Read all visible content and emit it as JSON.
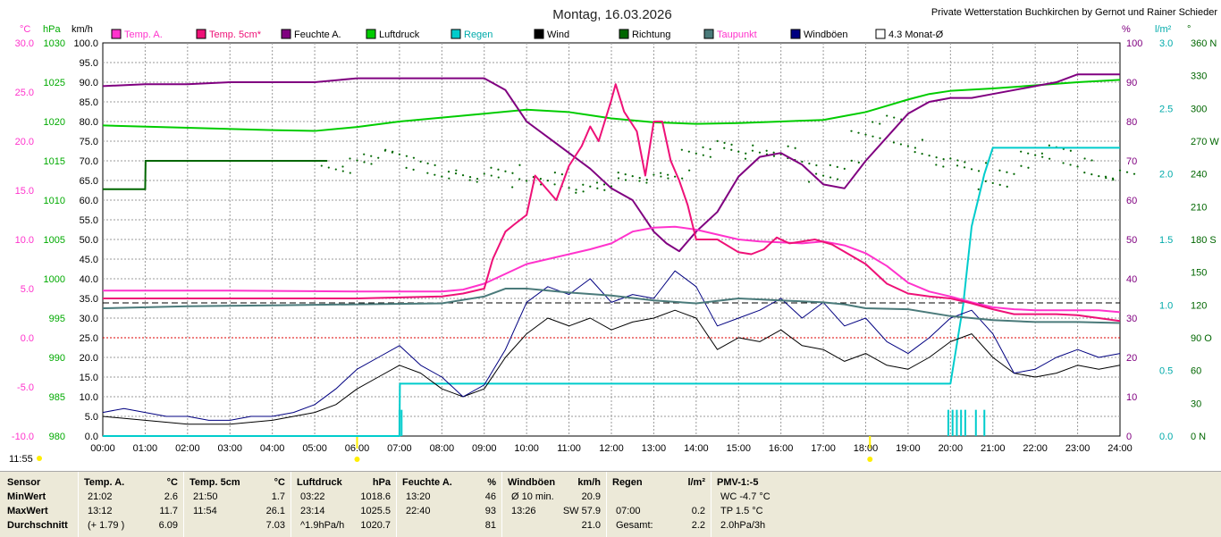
{
  "header": {
    "date_title": "Montag, 16.03.2026",
    "station": "Private Wetterstation Buchkirchen by Gernot und Rainer Schieder",
    "current_time": "11:55"
  },
  "units": {
    "left": [
      "°C",
      "hPa",
      "km/h"
    ],
    "right": [
      "%",
      "l/m²",
      "°"
    ]
  },
  "colors": {
    "temp_a": "#ff33cc",
    "temp_5cm": "#ee1177",
    "feuchte": "#800080",
    "luftdruck": "#00cc00",
    "regen": "#00cccc",
    "wind": "#000000",
    "richtung": "#006600",
    "taupunkt": "#4a7a7a",
    "windboeen": "#000080",
    "monat": "#000000"
  },
  "legend": [
    {
      "label": "Temp. A.",
      "color": "#ff33cc",
      "text_color": "#ff33cc"
    },
    {
      "label": "Temp. 5cm*",
      "color": "#ee1177",
      "text_color": "#ee1177"
    },
    {
      "label": "Feuchte A.",
      "color": "#800080",
      "text_color": "#000000"
    },
    {
      "label": "Luftdruck",
      "color": "#00cc00",
      "text_color": "#000000"
    },
    {
      "label": "Regen",
      "color": "#00cccc",
      "text_color": "#00aaaa"
    },
    {
      "label": "Wind",
      "color": "#000000",
      "text_color": "#000000"
    },
    {
      "label": "Richtung",
      "color": "#006600",
      "text_color": "#000000"
    },
    {
      "label": "Taupunkt",
      "color": "#4a7a7a",
      "text_color": "#ff33cc"
    },
    {
      "label": "Windböen",
      "color": "#000080",
      "text_color": "#000000"
    },
    {
      "label": "4.3 Monat-Ø",
      "color": "#ffffff",
      "text_color": "#000000"
    }
  ],
  "chart_data": {
    "type": "line",
    "x_ticks": [
      "00:00",
      "01:00",
      "02:00",
      "03:00",
      "04:00",
      "05:00",
      "06:00",
      "07:00",
      "08:00",
      "09:00",
      "10:00",
      "11:00",
      "12:00",
      "13:00",
      "14:00",
      "15:00",
      "16:00",
      "17:00",
      "18:00",
      "19:00",
      "20:00",
      "21:00",
      "22:00",
      "23:00",
      "24:00"
    ],
    "axes": {
      "temp": {
        "min": -10,
        "max": 30,
        "ticks": [
          "30.0",
          "25.0",
          "20.0",
          "15.0",
          "10.0",
          "5.0",
          "0.0",
          "-5.0",
          "-10.0"
        ]
      },
      "pressure": {
        "min": 980,
        "max": 1030,
        "ticks": [
          "1030",
          "1025",
          "1020",
          "1015",
          "1010",
          "1005",
          "1000",
          "995",
          "990",
          "985",
          "980"
        ]
      },
      "wind": {
        "min": 0,
        "max": 100,
        "ticks": [
          "100.0",
          "95.0",
          "90.0",
          "85.0",
          "80.0",
          "75.0",
          "70.0",
          "65.0",
          "60.0",
          "55.0",
          "50.0",
          "45.0",
          "40.0",
          "35.0",
          "30.0",
          "25.0",
          "20.0",
          "15.0",
          "10.0",
          "5.0",
          "0.0"
        ]
      },
      "humidity": {
        "min": 0,
        "max": 100,
        "ticks": [
          "100",
          "90",
          "80",
          "70",
          "60",
          "50",
          "40",
          "30",
          "20",
          "10",
          "0"
        ]
      },
      "rain": {
        "min": 0,
        "max": 3,
        "ticks": [
          "3.0",
          "2.5",
          "2.0",
          "1.5",
          "1.0",
          "0.5",
          "0.0"
        ]
      },
      "direction": {
        "min": 0,
        "max": 360,
        "ticks": [
          "360 N",
          "330",
          "300",
          "270 W",
          "240",
          "210",
          "180 S",
          "150",
          "120",
          "90 O",
          "60",
          "30",
          "0 N"
        ]
      }
    },
    "month_avg_temp": 3.55,
    "series": [
      {
        "name": "Temp. A.",
        "axis": "temp",
        "x": [
          0,
          3,
          6,
          8,
          8.5,
          9,
          9.5,
          10,
          10.5,
          11,
          11.5,
          12,
          12.5,
          13,
          13.5,
          14,
          14.5,
          15,
          15.5,
          16,
          16.5,
          17,
          17.5,
          18,
          18.5,
          19,
          19.5,
          20,
          20.5,
          21,
          21.5,
          22,
          22.5,
          23,
          23.5,
          24
        ],
        "y": [
          4.8,
          4.8,
          4.7,
          4.7,
          4.9,
          5.5,
          6.5,
          7.5,
          8,
          8.5,
          9,
          9.6,
          10.8,
          11.2,
          11.3,
          11,
          10.5,
          10,
          9.8,
          9.7,
          9.6,
          9.8,
          9.4,
          8.6,
          7.3,
          5.6,
          4.7,
          4.2,
          3.6,
          3.1,
          2.9,
          2.8,
          2.8,
          2.8,
          2.8,
          2.6
        ]
      },
      {
        "name": "Temp. 5cm*",
        "axis": "temp",
        "x": [
          0,
          3,
          6,
          7,
          8,
          8.5,
          9,
          9.2,
          9.5,
          9.7,
          10,
          10.2,
          10.5,
          10.7,
          11,
          11.3,
          11.5,
          11.7,
          12,
          12.1,
          12.3,
          12.6,
          12.8,
          13,
          13.2,
          13.4,
          13.6,
          13.8,
          14,
          14.5,
          15,
          15.3,
          15.6,
          15.9,
          16.2,
          16.5,
          16.8,
          17.2,
          17.6,
          18,
          18.5,
          19,
          19.5,
          20,
          20.5,
          21,
          21.5,
          22,
          22.5,
          23,
          23.5,
          24
        ],
        "y": [
          4.0,
          4.0,
          4.0,
          4.1,
          4.2,
          4.5,
          5.0,
          8.0,
          10.8,
          11.5,
          12.5,
          16.5,
          15.0,
          14.0,
          17.5,
          19.5,
          21.5,
          20.0,
          24.2,
          25.8,
          23.0,
          21.0,
          16.5,
          22.0,
          22.0,
          18.0,
          16.0,
          13.5,
          10.0,
          10.0,
          8.7,
          8.5,
          9.0,
          10.2,
          9.6,
          9.8,
          10.0,
          9.5,
          8.5,
          7.5,
          5.5,
          4.5,
          4.2,
          4.0,
          3.5,
          2.9,
          2.4,
          2.4,
          2.4,
          2.3,
          2.0,
          1.7
        ]
      },
      {
        "name": "Feuchte A.",
        "axis": "humidity",
        "x": [
          0,
          1,
          2,
          3,
          4,
          5,
          6,
          7,
          8,
          9,
          9.5,
          10,
          10.5,
          11,
          11.5,
          12,
          12.5,
          13,
          13.3,
          13.6,
          14,
          14.5,
          15,
          15.5,
          16,
          16.5,
          17,
          17.5,
          18,
          18.5,
          19,
          19.5,
          20,
          20.5,
          21,
          21.5,
          22,
          22.5,
          23,
          23.5,
          24
        ],
        "y": [
          89,
          89.5,
          89.5,
          90,
          90,
          90,
          91,
          91,
          91,
          91,
          88,
          80,
          76,
          72,
          68,
          63,
          60,
          52,
          49,
          47,
          52,
          57,
          66,
          71,
          72,
          69,
          64,
          63,
          70,
          76,
          82,
          85,
          86,
          86,
          87,
          88,
          89,
          90,
          92,
          92,
          92
        ]
      },
      {
        "name": "Luftdruck",
        "axis": "pressure",
        "x": [
          0,
          2,
          4,
          5,
          6,
          7,
          8,
          9,
          10,
          11,
          12,
          13,
          14,
          15,
          16,
          17,
          18,
          18.5,
          19,
          19.5,
          20,
          21,
          22,
          23,
          24
        ],
        "y": [
          1019.5,
          1019.2,
          1018.9,
          1018.8,
          1019.3,
          1020,
          1020.5,
          1021,
          1021.5,
          1021.2,
          1020.4,
          1019.9,
          1019.7,
          1019.8,
          1020,
          1020.2,
          1021.2,
          1022,
          1022.8,
          1023.5,
          1023.9,
          1024.2,
          1024.6,
          1025,
          1025.3
        ]
      },
      {
        "name": "Regen",
        "axis": "rain",
        "x": [
          0,
          6.5,
          7.0,
          7.01,
          20.0,
          20.1,
          20.3,
          20.5,
          20.8,
          21.0,
          24
        ],
        "y": [
          0,
          0,
          0,
          0.4,
          0.4,
          0.6,
          1.0,
          1.6,
          2.0,
          2.2,
          2.2
        ]
      },
      {
        "name": "Taupunkt",
        "axis": "temp",
        "x": [
          0,
          2,
          4,
          6,
          8,
          9,
          9.5,
          10,
          11,
          12,
          13,
          14,
          15,
          16,
          17,
          17.5,
          18,
          19,
          20,
          21,
          22,
          23,
          24
        ],
        "y": [
          3.0,
          3.2,
          3.3,
          3.4,
          3.5,
          4.2,
          5.0,
          5.0,
          4.6,
          4.3,
          3.8,
          3.5,
          4.0,
          3.8,
          3.6,
          3.4,
          3.0,
          2.9,
          2.2,
          1.8,
          1.6,
          1.6,
          1.5
        ]
      },
      {
        "name": "Wind",
        "axis": "wind",
        "x": [
          0,
          1,
          2,
          3,
          4,
          5,
          5.5,
          6,
          6.5,
          7,
          7.5,
          8,
          8.5,
          9,
          9.5,
          10,
          10.5,
          11,
          11.5,
          12,
          12.5,
          13,
          13.5,
          14,
          14.5,
          15,
          15.5,
          16,
          16.5,
          17,
          17.5,
          18,
          18.5,
          19,
          19.5,
          20,
          20.5,
          21,
          21.5,
          22,
          22.5,
          23,
          23.5,
          24
        ],
        "y": [
          5,
          4,
          3,
          3,
          4,
          6,
          8,
          12,
          15,
          18,
          16,
          12,
          10,
          12,
          20,
          26,
          30,
          28,
          30,
          27,
          29,
          30,
          32,
          30,
          22,
          25,
          24,
          27,
          23,
          22,
          19,
          21,
          18,
          17,
          20,
          24,
          26,
          20,
          16,
          15,
          16,
          18,
          17,
          18
        ]
      },
      {
        "name": "Windböen",
        "axis": "wind",
        "x": [
          0,
          0.5,
          1,
          1.5,
          2,
          2.5,
          3,
          3.5,
          4,
          4.5,
          5,
          5.5,
          6,
          6.5,
          7,
          7.5,
          8,
          8.5,
          9,
          9.5,
          10,
          10.5,
          11,
          11.5,
          12,
          12.5,
          13,
          13.5,
          14,
          14.5,
          15,
          15.5,
          16,
          16.5,
          17,
          17.5,
          18,
          18.5,
          19,
          19.5,
          20,
          20.5,
          21,
          21.5,
          22,
          22.5,
          23,
          23.5,
          24
        ],
        "y": [
          6,
          7,
          6,
          5,
          5,
          4,
          4,
          5,
          5,
          6,
          8,
          12,
          17,
          20,
          23,
          18,
          15,
          10,
          13,
          22,
          34,
          38,
          36,
          40,
          34,
          36,
          35,
          42,
          38,
          28,
          30,
          32,
          35,
          30,
          34,
          28,
          30,
          24,
          21,
          25,
          30,
          32,
          26,
          16,
          17,
          20,
          22,
          20,
          21
        ]
      },
      {
        "name": "Richtung",
        "axis": "direction",
        "x": [
          0,
          1,
          1.01,
          5.3,
          5.5,
          6,
          6.5,
          7,
          7.5,
          8,
          8.5,
          9,
          9.5,
          10,
          10.5,
          11,
          11.5,
          12,
          12.5,
          13,
          13.5,
          14,
          14.5,
          15,
          15.5,
          16,
          16.5,
          17,
          17.5,
          18,
          18.5,
          19,
          19.5,
          20,
          20.5,
          21,
          21.5,
          22,
          22.5,
          23,
          23.5,
          24
        ],
        "y": [
          226,
          226,
          252,
          252,
          245,
          250,
          258,
          258,
          248,
          240,
          238,
          236,
          244,
          232,
          238,
          228,
          226,
          232,
          238,
          236,
          240,
          258,
          266,
          262,
          258,
          262,
          252,
          236,
          248,
          276,
          290,
          268,
          256,
          250,
          246,
          230,
          244,
          258,
          262,
          250,
          238,
          240
        ]
      }
    ]
  },
  "stats_table": {
    "row_labels": [
      "Sensor",
      "MinWert",
      "MaxWert",
      "Durchschnitt"
    ],
    "columns": [
      {
        "header": "Temp. A.",
        "unit": "°C",
        "rows": [
          [
            "21:02",
            "2.6"
          ],
          [
            "13:12",
            "11.7"
          ],
          [
            "(+ 1.79 )",
            "6.09"
          ]
        ]
      },
      {
        "header": "Temp. 5cm",
        "unit": "°C",
        "rows": [
          [
            "21:50",
            "1.7"
          ],
          [
            "11:54",
            "26.1"
          ],
          [
            "",
            "7.03"
          ]
        ]
      },
      {
        "header": "Luftdruck",
        "unit": "hPa",
        "rows": [
          [
            "03:22",
            "1018.6"
          ],
          [
            "23:14",
            "1025.5"
          ],
          [
            "^1.9hPa/h",
            "1020.7"
          ]
        ]
      },
      {
        "header": "Feuchte A.",
        "unit": "%",
        "rows": [
          [
            "13:20",
            "46"
          ],
          [
            "22:40",
            "93"
          ],
          [
            "",
            "81"
          ]
        ]
      },
      {
        "header": "Windböen",
        "unit": "km/h",
        "rows": [
          [
            "Ø 10 min.",
            "20.9"
          ],
          [
            "13:26",
            "SW 57.9"
          ],
          [
            "",
            "21.0"
          ]
        ]
      },
      {
        "header": "Regen",
        "unit": "l/m²",
        "rows": [
          [
            "",
            ""
          ],
          [
            "07:00",
            "0.2"
          ],
          [
            "Gesamt:",
            "2.2"
          ]
        ]
      },
      {
        "header": "PMV-1:-5",
        "unit": "",
        "rows": [
          [
            "WC -4.7 °C",
            ""
          ],
          [
            "TP 1.5 °C",
            ""
          ],
          [
            "2.0hPa/3h",
            ""
          ]
        ]
      }
    ]
  }
}
